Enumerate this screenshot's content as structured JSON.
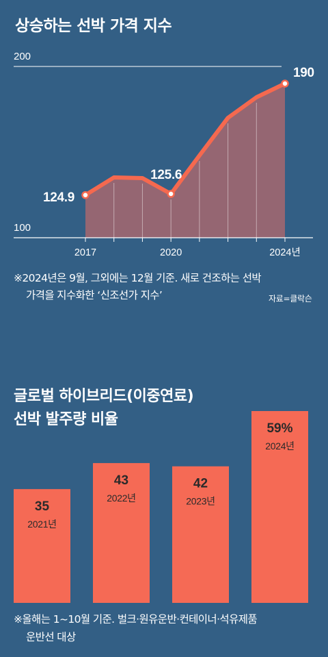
{
  "chart_data": [
    {
      "type": "area",
      "title": "상승하는 선박 가격 지수",
      "x": [
        2017,
        2018,
        2019,
        2020,
        2021,
        2022,
        2023,
        2024
      ],
      "values": [
        124.9,
        135.2,
        134.8,
        125.6,
        148,
        170,
        182,
        190
      ],
      "labeled_points": [
        {
          "x": 2017,
          "label": "124.9"
        },
        {
          "x": 2020,
          "label": "125.6"
        },
        {
          "x": 2024,
          "label": "190"
        }
      ],
      "x_tick_labels": [
        {
          "x": 2017,
          "label": "2017"
        },
        {
          "x": 2020,
          "label": "2020"
        },
        {
          "x": 2024,
          "label": "2024년"
        }
      ],
      "y_tick_labels": [
        "100",
        "200"
      ],
      "ylim": [
        100,
        200
      ],
      "xlim": [
        2017,
        2024
      ],
      "note_line1": "※2024년은 9월, 그외에는 12월 기준. 새로 건조하는 선박",
      "note_line2": "가격을 지수화한 ‘신조선가 지수’",
      "source": "자료=클락슨",
      "line_color": "#f5694f",
      "fill_color": "#956672"
    },
    {
      "type": "bar",
      "title_line1": "글로벌 하이브리드(이중연료)",
      "title_line2": "선박 발주량 비율",
      "categories": [
        "2021년",
        "2022년",
        "2023년",
        "2024년"
      ],
      "values": [
        35,
        43,
        42,
        59
      ],
      "value_labels": [
        "35",
        "43",
        "42",
        "59%"
      ],
      "ylim": [
        0,
        59
      ],
      "bar_color": "#f56a55",
      "note_line1": "※올해는 1~10월 기준. 벌크·원유운반·컨테이너·석유제품",
      "note_line2": "운반선 대상"
    }
  ],
  "colors": {
    "background": "#335f85"
  }
}
